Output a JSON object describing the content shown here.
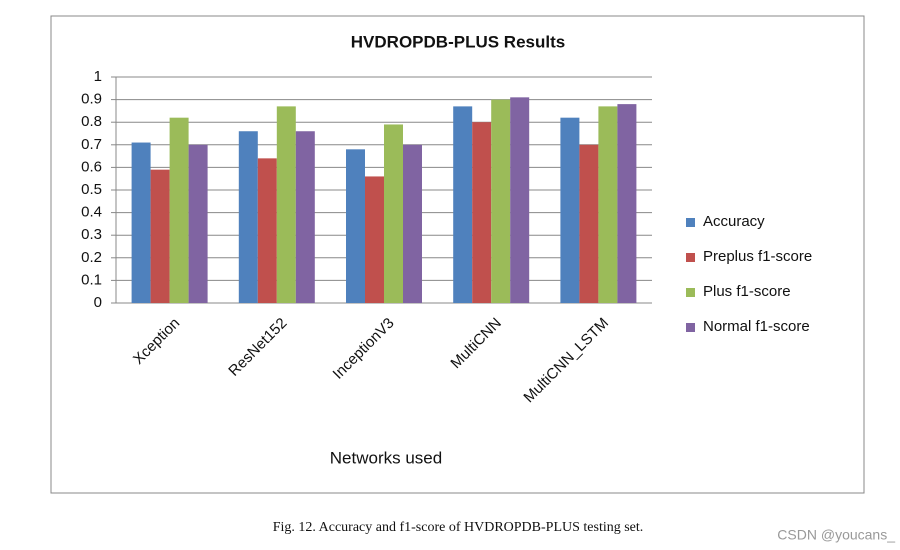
{
  "chart_data": {
    "type": "bar",
    "title": "HVDROPDB-PLUS  Results",
    "x_label": "Networks used",
    "categories": [
      "Xception",
      "ResNet152",
      "InceptionV3",
      "MultiCNN",
      "MultiCNN_LSTM"
    ],
    "series": [
      {
        "name": "Accuracy",
        "color": "#4f81bd",
        "values": [
          0.71,
          0.76,
          0.68,
          0.87,
          0.82
        ]
      },
      {
        "name": "Preplus f1-score",
        "color": "#c0504d",
        "values": [
          0.59,
          0.64,
          0.56,
          0.8,
          0.7
        ]
      },
      {
        "name": "Plus f1-score",
        "color": "#9bbb59",
        "values": [
          0.82,
          0.87,
          0.79,
          0.9,
          0.87
        ]
      },
      {
        "name": "Normal f1-score",
        "color": "#8064a2",
        "values": [
          0.7,
          0.76,
          0.7,
          0.91,
          0.88
        ]
      }
    ],
    "ylim": [
      0,
      1
    ],
    "yticks": [
      0,
      0.1,
      0.2,
      0.3,
      0.4,
      0.5,
      0.6,
      0.7,
      0.8,
      0.9,
      1
    ],
    "grid": true,
    "legend": "right"
  },
  "caption": "Fig. 12.  Accuracy and f1-score of HVDROPDB-PLUS testing set.",
  "watermark": "CSDN @youcans_"
}
